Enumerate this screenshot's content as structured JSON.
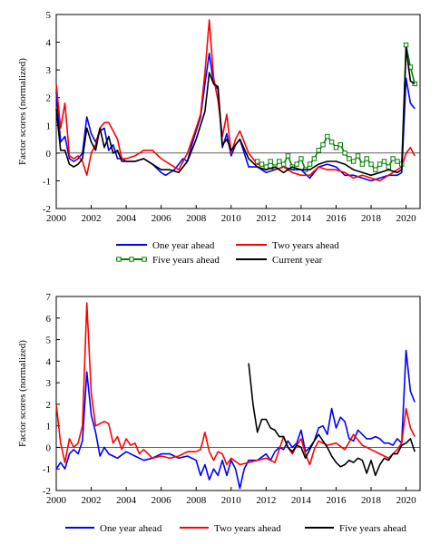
{
  "chart_data": [
    {
      "type": "line",
      "ylabel": "Factor scores (normalized)",
      "xlim": [
        2000,
        2020.8
      ],
      "ylim": [
        -2,
        5
      ],
      "xticks": [
        "2000",
        "2002",
        "2004",
        "2006",
        "2008",
        "2010",
        "2012",
        "2014",
        "2016",
        "2018",
        "2020"
      ],
      "yticks": [
        "-2",
        "-1",
        "0",
        "1",
        "2",
        "3",
        "4",
        "5"
      ],
      "legend": "bottom",
      "series": [
        {
          "name": "One year ahead",
          "color": "#0000ff",
          "marker": "none",
          "x": [
            2000,
            2000.25,
            2000.5,
            2000.75,
            2001,
            2001.25,
            2001.5,
            2001.75,
            2002,
            2002.25,
            2002.5,
            2002.75,
            2003,
            2003.25,
            2003.5,
            2003.75,
            2004,
            2004.5,
            2005,
            2005.5,
            2006,
            2006.25,
            2006.5,
            2006.75,
            2007,
            2007.25,
            2007.5,
            2007.75,
            2008,
            2008.25,
            2008.5,
            2008.75,
            2009,
            2009.25,
            2009.5,
            2009.75,
            2010,
            2010.25,
            2010.5,
            2011,
            2011.5,
            2012,
            2012.5,
            2013,
            2013.5,
            2014,
            2014.5,
            2015,
            2015.5,
            2016,
            2016.5,
            2017,
            2017.5,
            2018,
            2018.5,
            2019,
            2019.5,
            2019.75,
            2020,
            2020.25,
            2020.5
          ],
          "y": [
            2.2,
            0.4,
            0.6,
            -0.2,
            -0.3,
            -0.2,
            0,
            1.3,
            0.7,
            0.4,
            0.8,
            0.9,
            0.1,
            0.3,
            -0.2,
            -0.2,
            -0.3,
            -0.3,
            -0.2,
            -0.4,
            -0.7,
            -0.8,
            -0.7,
            -0.6,
            -0.4,
            -0.2,
            -0.3,
            0.3,
            0.8,
            1.3,
            2.5,
            3.6,
            2.5,
            2.3,
            0.2,
            0.7,
            -0.1,
            0.3,
            0.5,
            -0.5,
            -0.5,
            -0.7,
            -0.6,
            -0.5,
            -0.6,
            -0.6,
            -0.9,
            -0.5,
            -0.4,
            -0.5,
            -0.8,
            -0.8,
            -0.9,
            -1,
            -0.9,
            -0.8,
            -0.8,
            -0.7,
            2.7,
            1.8,
            1.6
          ]
        },
        {
          "name": "Two years ahead",
          "color": "#ff0000",
          "marker": "none",
          "x": [
            2000,
            2000.25,
            2000.5,
            2000.75,
            2001,
            2001.25,
            2001.5,
            2001.75,
            2002,
            2002.25,
            2002.5,
            2002.75,
            2003,
            2003.25,
            2003.5,
            2003.75,
            2004,
            2004.5,
            2005,
            2005.5,
            2006,
            2006.5,
            2007,
            2007.5,
            2008,
            2008.25,
            2008.5,
            2008.75,
            2009,
            2009.25,
            2009.5,
            2009.75,
            2010,
            2010.25,
            2010.5,
            2011,
            2011.5,
            2012,
            2012.5,
            2013,
            2013.5,
            2014,
            2014.5,
            2015,
            2015.5,
            2016,
            2016.5,
            2017,
            2017.5,
            2018,
            2018.5,
            2019,
            2019.5,
            2019.75,
            2020,
            2020.25,
            2020.5
          ],
          "y": [
            2.5,
            0.9,
            1.8,
            -0.1,
            -0.2,
            -0.1,
            -0.3,
            -0.8,
            0,
            0.3,
            0.9,
            1.1,
            1.1,
            0.8,
            0.5,
            -0.2,
            -0.2,
            -0.1,
            0.1,
            0.1,
            -0.2,
            -0.4,
            -0.6,
            0,
            0.9,
            1.4,
            2.9,
            4.8,
            2.7,
            1.9,
            0.6,
            1.4,
            0,
            0.5,
            0.8,
            0,
            -0.4,
            -0.5,
            -0.6,
            -0.5,
            -0.7,
            -0.8,
            -0.8,
            -0.5,
            -0.6,
            -0.6,
            -0.7,
            -0.9,
            -0.8,
            -0.9,
            -1,
            -0.8,
            -0.6,
            -0.5,
            0,
            0.2,
            -0.1
          ]
        },
        {
          "name": "Five years ahead",
          "color": "#008000",
          "marker": "square",
          "x": [
            2011.5,
            2011.75,
            2012,
            2012.25,
            2012.5,
            2012.75,
            2013,
            2013.25,
            2013.5,
            2013.75,
            2014,
            2014.25,
            2014.5,
            2014.75,
            2015,
            2015.25,
            2015.5,
            2015.75,
            2016,
            2016.25,
            2016.5,
            2016.75,
            2017,
            2017.25,
            2017.5,
            2017.75,
            2018,
            2018.25,
            2018.5,
            2018.75,
            2019,
            2019.25,
            2019.5,
            2019.75,
            2020,
            2020.25,
            2020.5
          ],
          "y": [
            -0.3,
            -0.4,
            -0.5,
            -0.3,
            -0.5,
            -0.3,
            -0.4,
            -0.1,
            -0.5,
            -0.4,
            -0.2,
            -0.6,
            -0.4,
            -0.2,
            0.1,
            0.3,
            0.6,
            0.4,
            0.2,
            0.3,
            0,
            -0.2,
            -0.3,
            -0.1,
            -0.4,
            -0.2,
            -0.4,
            -0.6,
            -0.4,
            -0.3,
            -0.5,
            -0.2,
            -0.3,
            -0.4,
            3.9,
            3.1,
            2.5
          ]
        },
        {
          "name": "Current year",
          "color": "#000000",
          "marker": "none",
          "x": [
            2000,
            2000.25,
            2000.5,
            2000.75,
            2001,
            2001.25,
            2001.5,
            2001.75,
            2002,
            2002.25,
            2002.5,
            2002.75,
            2003,
            2003.25,
            2003.5,
            2003.75,
            2004,
            2004.5,
            2005,
            2005.5,
            2006,
            2006.5,
            2007,
            2007.5,
            2008,
            2008.5,
            2008.75,
            2009,
            2009.25,
            2009.5,
            2009.75,
            2010,
            2010.5,
            2011,
            2011.5,
            2012,
            2012.5,
            2013,
            2013.5,
            2014,
            2014.5,
            2015,
            2015.5,
            2016,
            2016.5,
            2017,
            2017.5,
            2018,
            2018.5,
            2019,
            2019.5,
            2019.75,
            2020,
            2020.25,
            2020.5
          ],
          "y": [
            1.6,
            0.1,
            0.1,
            -0.4,
            -0.5,
            -0.4,
            -0.2,
            0.9,
            0.4,
            0.1,
            0.9,
            0.2,
            0.6,
            0,
            0.1,
            -0.3,
            -0.3,
            -0.3,
            -0.2,
            -0.4,
            -0.6,
            -0.6,
            -0.7,
            -0.3,
            0.5,
            1.5,
            2.9,
            2.5,
            2.4,
            0.3,
            0.5,
            0.1,
            0.5,
            -0.2,
            -0.5,
            -0.6,
            -0.5,
            -0.7,
            -0.5,
            -0.6,
            -0.6,
            -0.4,
            -0.3,
            -0.3,
            -0.4,
            -0.6,
            -0.7,
            -0.8,
            -0.7,
            -0.6,
            -0.7,
            -0.6,
            3.8,
            2.6,
            2.5
          ]
        }
      ]
    },
    {
      "type": "line",
      "ylabel": "Factor scores (normalized)",
      "xlim": [
        2000,
        2020.8
      ],
      "ylim": [
        -2,
        7
      ],
      "xticks": [
        "2000",
        "2002",
        "2004",
        "2006",
        "2008",
        "2010",
        "2012",
        "2014",
        "2016",
        "2018",
        "2020"
      ],
      "yticks": [
        "-2",
        "-1",
        "0",
        "1",
        "2",
        "3",
        "4",
        "5",
        "6",
        "7"
      ],
      "legend": "bottom",
      "series": [
        {
          "name": "One year ahead",
          "color": "#0000ff",
          "marker": "none",
          "x": [
            2000,
            2000.25,
            2000.5,
            2000.75,
            2001,
            2001.25,
            2001.5,
            2001.75,
            2002,
            2002.25,
            2002.5,
            2002.75,
            2003,
            2003.5,
            2004,
            2004.5,
            2005,
            2005.5,
            2006,
            2006.5,
            2007,
            2007.5,
            2008,
            2008.25,
            2008.5,
            2008.75,
            2009,
            2009.25,
            2009.5,
            2009.75,
            2010,
            2010.25,
            2010.5,
            2010.75,
            2011,
            2011.5,
            2012,
            2012.25,
            2012.5,
            2012.75,
            2013,
            2013.25,
            2013.5,
            2013.75,
            2014,
            2014.25,
            2014.5,
            2014.75,
            2015,
            2015.25,
            2015.5,
            2015.75,
            2016,
            2016.25,
            2016.5,
            2016.75,
            2017,
            2017.25,
            2017.5,
            2017.75,
            2018,
            2018.25,
            2018.5,
            2018.75,
            2019,
            2019.25,
            2019.5,
            2019.75,
            2020,
            2020.25,
            2020.5
          ],
          "y": [
            -1,
            -0.7,
            -1,
            -0.3,
            -0.1,
            -0.3,
            0.3,
            3.5,
            1.5,
            0.7,
            -0.4,
            0,
            -0.3,
            -0.5,
            -0.2,
            -0.4,
            -0.6,
            -0.5,
            -0.3,
            -0.3,
            -0.5,
            -0.4,
            -0.6,
            -1.3,
            -0.8,
            -1.5,
            -1,
            -1.3,
            -0.6,
            -1.3,
            -0.6,
            -1,
            -1.9,
            -1,
            -0.6,
            -0.6,
            -0.3,
            -0.6,
            -0.2,
            0,
            -0.1,
            0.3,
            0,
            0.2,
            0.8,
            -0.2,
            0,
            0.3,
            0.9,
            1,
            0.6,
            1.8,
            0.9,
            1.4,
            1.2,
            0.4,
            0.3,
            0.8,
            0.6,
            0.4,
            0.4,
            0.5,
            0.4,
            0.2,
            0.2,
            0.1,
            0.4,
            0.2,
            4.5,
            2.6,
            2.1
          ]
        },
        {
          "name": "Two years ahead",
          "color": "#ff0000",
          "marker": "none",
          "x": [
            2000,
            2000.25,
            2000.5,
            2000.75,
            2001,
            2001.25,
            2001.5,
            2001.75,
            2002,
            2002.25,
            2002.5,
            2002.75,
            2003,
            2003.25,
            2003.5,
            2003.75,
            2004,
            2004.25,
            2004.5,
            2004.75,
            2005,
            2005.5,
            2006,
            2006.5,
            2007,
            2007.5,
            2008,
            2008.25,
            2008.5,
            2008.75,
            2009,
            2009.25,
            2009.5,
            2009.75,
            2010,
            2010.5,
            2011,
            2011.5,
            2012,
            2012.5,
            2013,
            2013.25,
            2013.5,
            2013.75,
            2014,
            2014.25,
            2014.5,
            2014.75,
            2015,
            2015.5,
            2016,
            2016.5,
            2017,
            2017.5,
            2018,
            2018.5,
            2019,
            2019.5,
            2019.75,
            2020,
            2020.25,
            2020.5
          ],
          "y": [
            2,
            0.2,
            -0.7,
            0.4,
            0,
            0.2,
            1,
            6.7,
            2.5,
            1,
            1.1,
            1.2,
            1.1,
            0.2,
            0.5,
            -0.1,
            0.4,
            0.1,
            0.2,
            -0.3,
            -0.1,
            -0.5,
            -0.4,
            -0.5,
            -0.4,
            -0.2,
            -0.2,
            -0.1,
            0.7,
            -0.2,
            -0.6,
            -0.2,
            -0.3,
            -0.8,
            -0.5,
            -0.8,
            -0.7,
            -0.6,
            -0.5,
            -0.7,
            0.5,
            0,
            -0.3,
            0.1,
            0.4,
            -0.3,
            -0.8,
            -0.1,
            0.3,
            0.1,
            0.2,
            -0.1,
            0.6,
            0.1,
            -0.1,
            -0.3,
            -0.5,
            -0.1,
            0.2,
            1.8,
            0.9,
            0.5
          ]
        },
        {
          "name": "Five years ahead",
          "color": "#000000",
          "marker": "none",
          "x": [
            2011,
            2011.25,
            2011.5,
            2011.75,
            2012,
            2012.25,
            2012.5,
            2012.75,
            2013,
            2013.25,
            2013.5,
            2013.75,
            2014,
            2014.25,
            2014.5,
            2014.75,
            2015,
            2015.25,
            2015.5,
            2015.75,
            2016,
            2016.25,
            2016.5,
            2016.75,
            2017,
            2017.25,
            2017.5,
            2017.75,
            2018,
            2018.25,
            2018.5,
            2018.75,
            2019,
            2019.25,
            2019.5,
            2019.75,
            2020,
            2020.25,
            2020.5
          ],
          "y": [
            3.9,
            2,
            0.7,
            1.3,
            1.3,
            0.9,
            0.8,
            0.5,
            0.5,
            0,
            -0.2,
            0.1,
            0,
            -0.5,
            -0.1,
            0.3,
            0.6,
            0.3,
            0,
            -0.4,
            -0.7,
            -0.9,
            -0.8,
            -0.6,
            -0.7,
            -0.5,
            -0.6,
            -1.2,
            -0.6,
            -1.3,
            -0.8,
            -0.5,
            -0.6,
            -0.3,
            -0.3,
            0.1,
            0.2,
            0.4,
            -0.2
          ]
        }
      ]
    }
  ]
}
